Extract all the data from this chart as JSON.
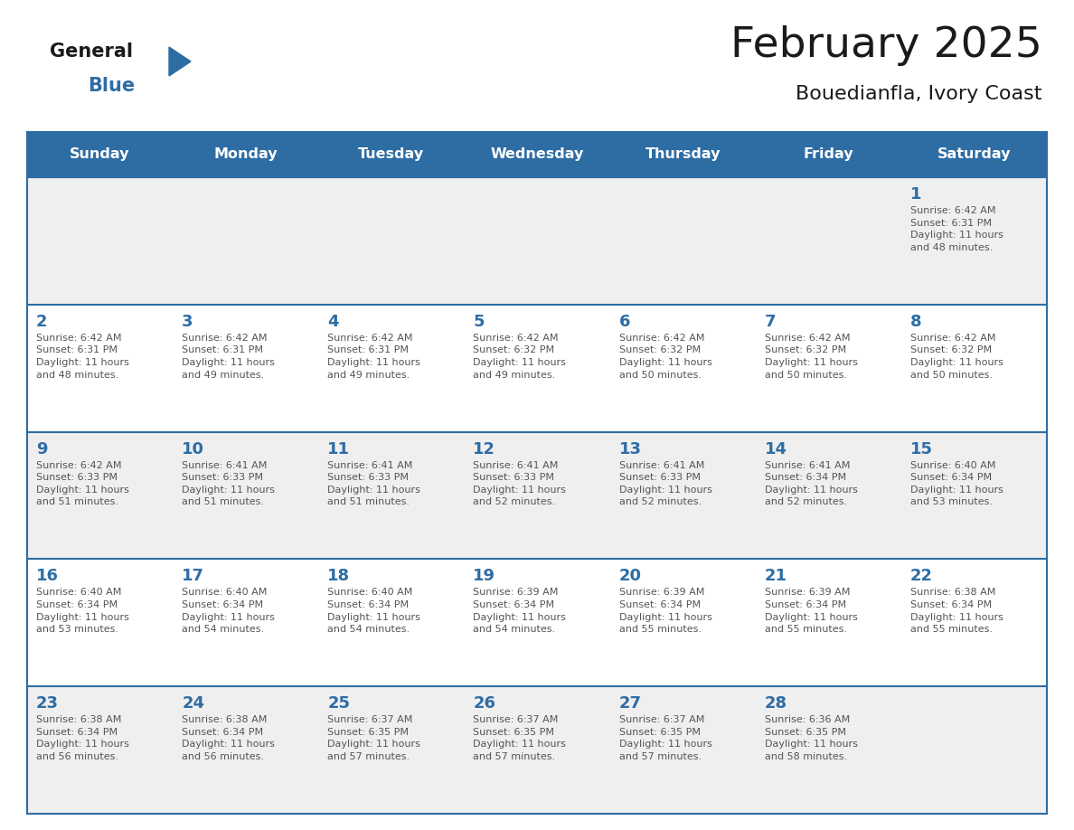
{
  "title": "February 2025",
  "subtitle": "Bouedianfla, Ivory Coast",
  "header_bg": "#2E6DA4",
  "header_text_color": "#FFFFFF",
  "cell_bg_odd": "#EFEFEF",
  "cell_bg_even": "#FFFFFF",
  "day_number_color": "#2E6DA4",
  "text_color": "#555555",
  "border_color": "#2E6DA4",
  "line_color": "#2E6DA4",
  "days_of_week": [
    "Sunday",
    "Monday",
    "Tuesday",
    "Wednesday",
    "Thursday",
    "Friday",
    "Saturday"
  ],
  "weeks": [
    [
      {
        "day": null,
        "info": null
      },
      {
        "day": null,
        "info": null
      },
      {
        "day": null,
        "info": null
      },
      {
        "day": null,
        "info": null
      },
      {
        "day": null,
        "info": null
      },
      {
        "day": null,
        "info": null
      },
      {
        "day": 1,
        "info": "Sunrise: 6:42 AM\nSunset: 6:31 PM\nDaylight: 11 hours\nand 48 minutes."
      }
    ],
    [
      {
        "day": 2,
        "info": "Sunrise: 6:42 AM\nSunset: 6:31 PM\nDaylight: 11 hours\nand 48 minutes."
      },
      {
        "day": 3,
        "info": "Sunrise: 6:42 AM\nSunset: 6:31 PM\nDaylight: 11 hours\nand 49 minutes."
      },
      {
        "day": 4,
        "info": "Sunrise: 6:42 AM\nSunset: 6:31 PM\nDaylight: 11 hours\nand 49 minutes."
      },
      {
        "day": 5,
        "info": "Sunrise: 6:42 AM\nSunset: 6:32 PM\nDaylight: 11 hours\nand 49 minutes."
      },
      {
        "day": 6,
        "info": "Sunrise: 6:42 AM\nSunset: 6:32 PM\nDaylight: 11 hours\nand 50 minutes."
      },
      {
        "day": 7,
        "info": "Sunrise: 6:42 AM\nSunset: 6:32 PM\nDaylight: 11 hours\nand 50 minutes."
      },
      {
        "day": 8,
        "info": "Sunrise: 6:42 AM\nSunset: 6:32 PM\nDaylight: 11 hours\nand 50 minutes."
      }
    ],
    [
      {
        "day": 9,
        "info": "Sunrise: 6:42 AM\nSunset: 6:33 PM\nDaylight: 11 hours\nand 51 minutes."
      },
      {
        "day": 10,
        "info": "Sunrise: 6:41 AM\nSunset: 6:33 PM\nDaylight: 11 hours\nand 51 minutes."
      },
      {
        "day": 11,
        "info": "Sunrise: 6:41 AM\nSunset: 6:33 PM\nDaylight: 11 hours\nand 51 minutes."
      },
      {
        "day": 12,
        "info": "Sunrise: 6:41 AM\nSunset: 6:33 PM\nDaylight: 11 hours\nand 52 minutes."
      },
      {
        "day": 13,
        "info": "Sunrise: 6:41 AM\nSunset: 6:33 PM\nDaylight: 11 hours\nand 52 minutes."
      },
      {
        "day": 14,
        "info": "Sunrise: 6:41 AM\nSunset: 6:34 PM\nDaylight: 11 hours\nand 52 minutes."
      },
      {
        "day": 15,
        "info": "Sunrise: 6:40 AM\nSunset: 6:34 PM\nDaylight: 11 hours\nand 53 minutes."
      }
    ],
    [
      {
        "day": 16,
        "info": "Sunrise: 6:40 AM\nSunset: 6:34 PM\nDaylight: 11 hours\nand 53 minutes."
      },
      {
        "day": 17,
        "info": "Sunrise: 6:40 AM\nSunset: 6:34 PM\nDaylight: 11 hours\nand 54 minutes."
      },
      {
        "day": 18,
        "info": "Sunrise: 6:40 AM\nSunset: 6:34 PM\nDaylight: 11 hours\nand 54 minutes."
      },
      {
        "day": 19,
        "info": "Sunrise: 6:39 AM\nSunset: 6:34 PM\nDaylight: 11 hours\nand 54 minutes."
      },
      {
        "day": 20,
        "info": "Sunrise: 6:39 AM\nSunset: 6:34 PM\nDaylight: 11 hours\nand 55 minutes."
      },
      {
        "day": 21,
        "info": "Sunrise: 6:39 AM\nSunset: 6:34 PM\nDaylight: 11 hours\nand 55 minutes."
      },
      {
        "day": 22,
        "info": "Sunrise: 6:38 AM\nSunset: 6:34 PM\nDaylight: 11 hours\nand 55 minutes."
      }
    ],
    [
      {
        "day": 23,
        "info": "Sunrise: 6:38 AM\nSunset: 6:34 PM\nDaylight: 11 hours\nand 56 minutes."
      },
      {
        "day": 24,
        "info": "Sunrise: 6:38 AM\nSunset: 6:34 PM\nDaylight: 11 hours\nand 56 minutes."
      },
      {
        "day": 25,
        "info": "Sunrise: 6:37 AM\nSunset: 6:35 PM\nDaylight: 11 hours\nand 57 minutes."
      },
      {
        "day": 26,
        "info": "Sunrise: 6:37 AM\nSunset: 6:35 PM\nDaylight: 11 hours\nand 57 minutes."
      },
      {
        "day": 27,
        "info": "Sunrise: 6:37 AM\nSunset: 6:35 PM\nDaylight: 11 hours\nand 57 minutes."
      },
      {
        "day": 28,
        "info": "Sunrise: 6:36 AM\nSunset: 6:35 PM\nDaylight: 11 hours\nand 58 minutes."
      },
      {
        "day": null,
        "info": null
      }
    ]
  ]
}
